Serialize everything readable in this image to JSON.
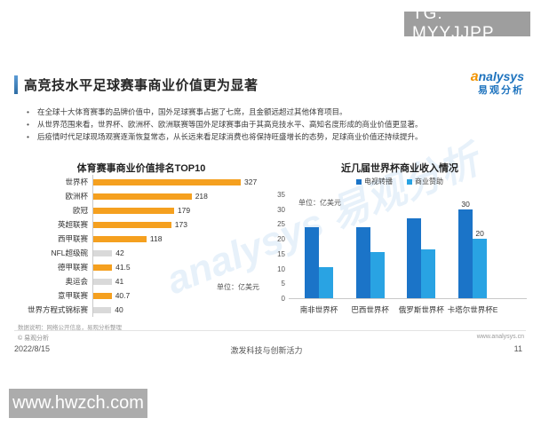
{
  "overlay": {
    "tg_badge": "TG: MYYJJPP",
    "site_watermark": "www.hwzch.com",
    "diagonal_watermark": "analysys 易观分析"
  },
  "header": {
    "title": "高竞技水平足球赛事商业价值更为显著",
    "logo_a": "a",
    "logo_en": "nalysys",
    "logo_cn": "易观分析"
  },
  "bullets": [
    "在全球十大体育赛事的品牌价值中，国外足球赛事占据了七席，且金额远超过其他体育项目。",
    "从世界范围来看，世界杯、欧洲杯、欧洲联赛等国外足球赛事由于其高竞技水平、高知名度形成的商业价值更显著。",
    "后疫情时代足球现场观赛逐渐恢复常态，从长远来看足球消费也将保持旺盛增长的态势，足球商业价值还持续提升。"
  ],
  "left_chart": {
    "title": "体育赛事商业价值排名TOP10",
    "unit_label": "单位：亿美元",
    "colors": {
      "highlight": "#f5a01f",
      "muted": "#d9d9d9"
    },
    "rows": [
      {
        "label": "世界杯",
        "value": 327,
        "display": "327",
        "highlight": true
      },
      {
        "label": "欧洲杯",
        "value": 218,
        "display": "218",
        "highlight": true
      },
      {
        "label": "欧冠",
        "value": 179,
        "display": "179",
        "highlight": true
      },
      {
        "label": "英超联赛",
        "value": 173,
        "display": "173",
        "highlight": true
      },
      {
        "label": "西甲联赛",
        "value": 118,
        "display": "118",
        "highlight": true
      },
      {
        "label": "NFL超级碗",
        "value": 42,
        "display": "42",
        "highlight": false
      },
      {
        "label": "德甲联赛",
        "value": 41.5,
        "display": "41.5",
        "highlight": true
      },
      {
        "label": "奥运会",
        "value": 41,
        "display": "41",
        "highlight": false
      },
      {
        "label": "意甲联赛",
        "value": 40.7,
        "display": "40.7",
        "highlight": true
      },
      {
        "label": "世界方程式锦标赛",
        "value": 40,
        "display": "40",
        "highlight": false
      }
    ]
  },
  "right_chart": {
    "title": "近几届世界杯商业收入情况",
    "unit_label": "单位：亿美元",
    "legend": [
      {
        "label": "电视转播",
        "color": "#1b74c8"
      },
      {
        "label": "商业赞助",
        "color": "#29a3e3"
      }
    ],
    "yticks": [
      35,
      30,
      25,
      20,
      15,
      10,
      5,
      0
    ],
    "groups": [
      {
        "label": "南非世界杯",
        "tv": 24,
        "sponsor": 10.5,
        "tv_label": "",
        "sponsor_label": ""
      },
      {
        "label": "巴西世界杯",
        "tv": 24,
        "sponsor": 15.5,
        "tv_label": "",
        "sponsor_label": ""
      },
      {
        "label": "俄罗斯世界杯",
        "tv": 27,
        "sponsor": 16.5,
        "tv_label": "",
        "sponsor_label": ""
      },
      {
        "label": "卡塔尔世界杯E",
        "tv": 30,
        "sponsor": 20,
        "tv_label": "30",
        "sponsor_label": "20"
      }
    ]
  },
  "chart_data": [
    {
      "type": "bar",
      "orientation": "horizontal",
      "title": "体育赛事商业价值排名TOP10",
      "unit": "亿美元",
      "categories": [
        "世界杯",
        "欧洲杯",
        "欧冠",
        "英超联赛",
        "西甲联赛",
        "NFL超级碗",
        "德甲联赛",
        "奥运会",
        "意甲联赛",
        "世界方程式锦标赛"
      ],
      "values": [
        327,
        218,
        179,
        173,
        118,
        42,
        41.5,
        41,
        40.7,
        40
      ],
      "highlighted_orange": [
        "世界杯",
        "欧洲杯",
        "欧冠",
        "英超联赛",
        "西甲联赛",
        "德甲联赛",
        "意甲联赛"
      ],
      "xlabel": "",
      "ylabel": "",
      "xlim": [
        0,
        350
      ],
      "grid": false
    },
    {
      "type": "bar",
      "title": "近几届世界杯商业收入情况",
      "unit": "亿美元",
      "categories": [
        "南非世界杯",
        "巴西世界杯",
        "俄罗斯世界杯",
        "卡塔尔世界杯E"
      ],
      "series": [
        {
          "name": "电视转播",
          "values": [
            24,
            24,
            27,
            30
          ]
        },
        {
          "name": "商业赞助",
          "values": [
            10.5,
            15.5,
            16.5,
            20
          ]
        }
      ],
      "data_labels_shown": {
        "卡塔尔世界杯E": {
          "电视转播": "30",
          "商业赞助": "20"
        }
      },
      "xlabel": "",
      "ylabel": "",
      "ylim": [
        0,
        35
      ],
      "legend_position": "top",
      "grid": false
    }
  ],
  "footer": {
    "source_note": "数据说明：网络公开信息，易观分析整理",
    "copyright": "© 易观分析",
    "site": "www.analysys.cn",
    "date": "2022/8/15",
    "slogan": "激发科技与创新活力",
    "page_number": "11"
  }
}
